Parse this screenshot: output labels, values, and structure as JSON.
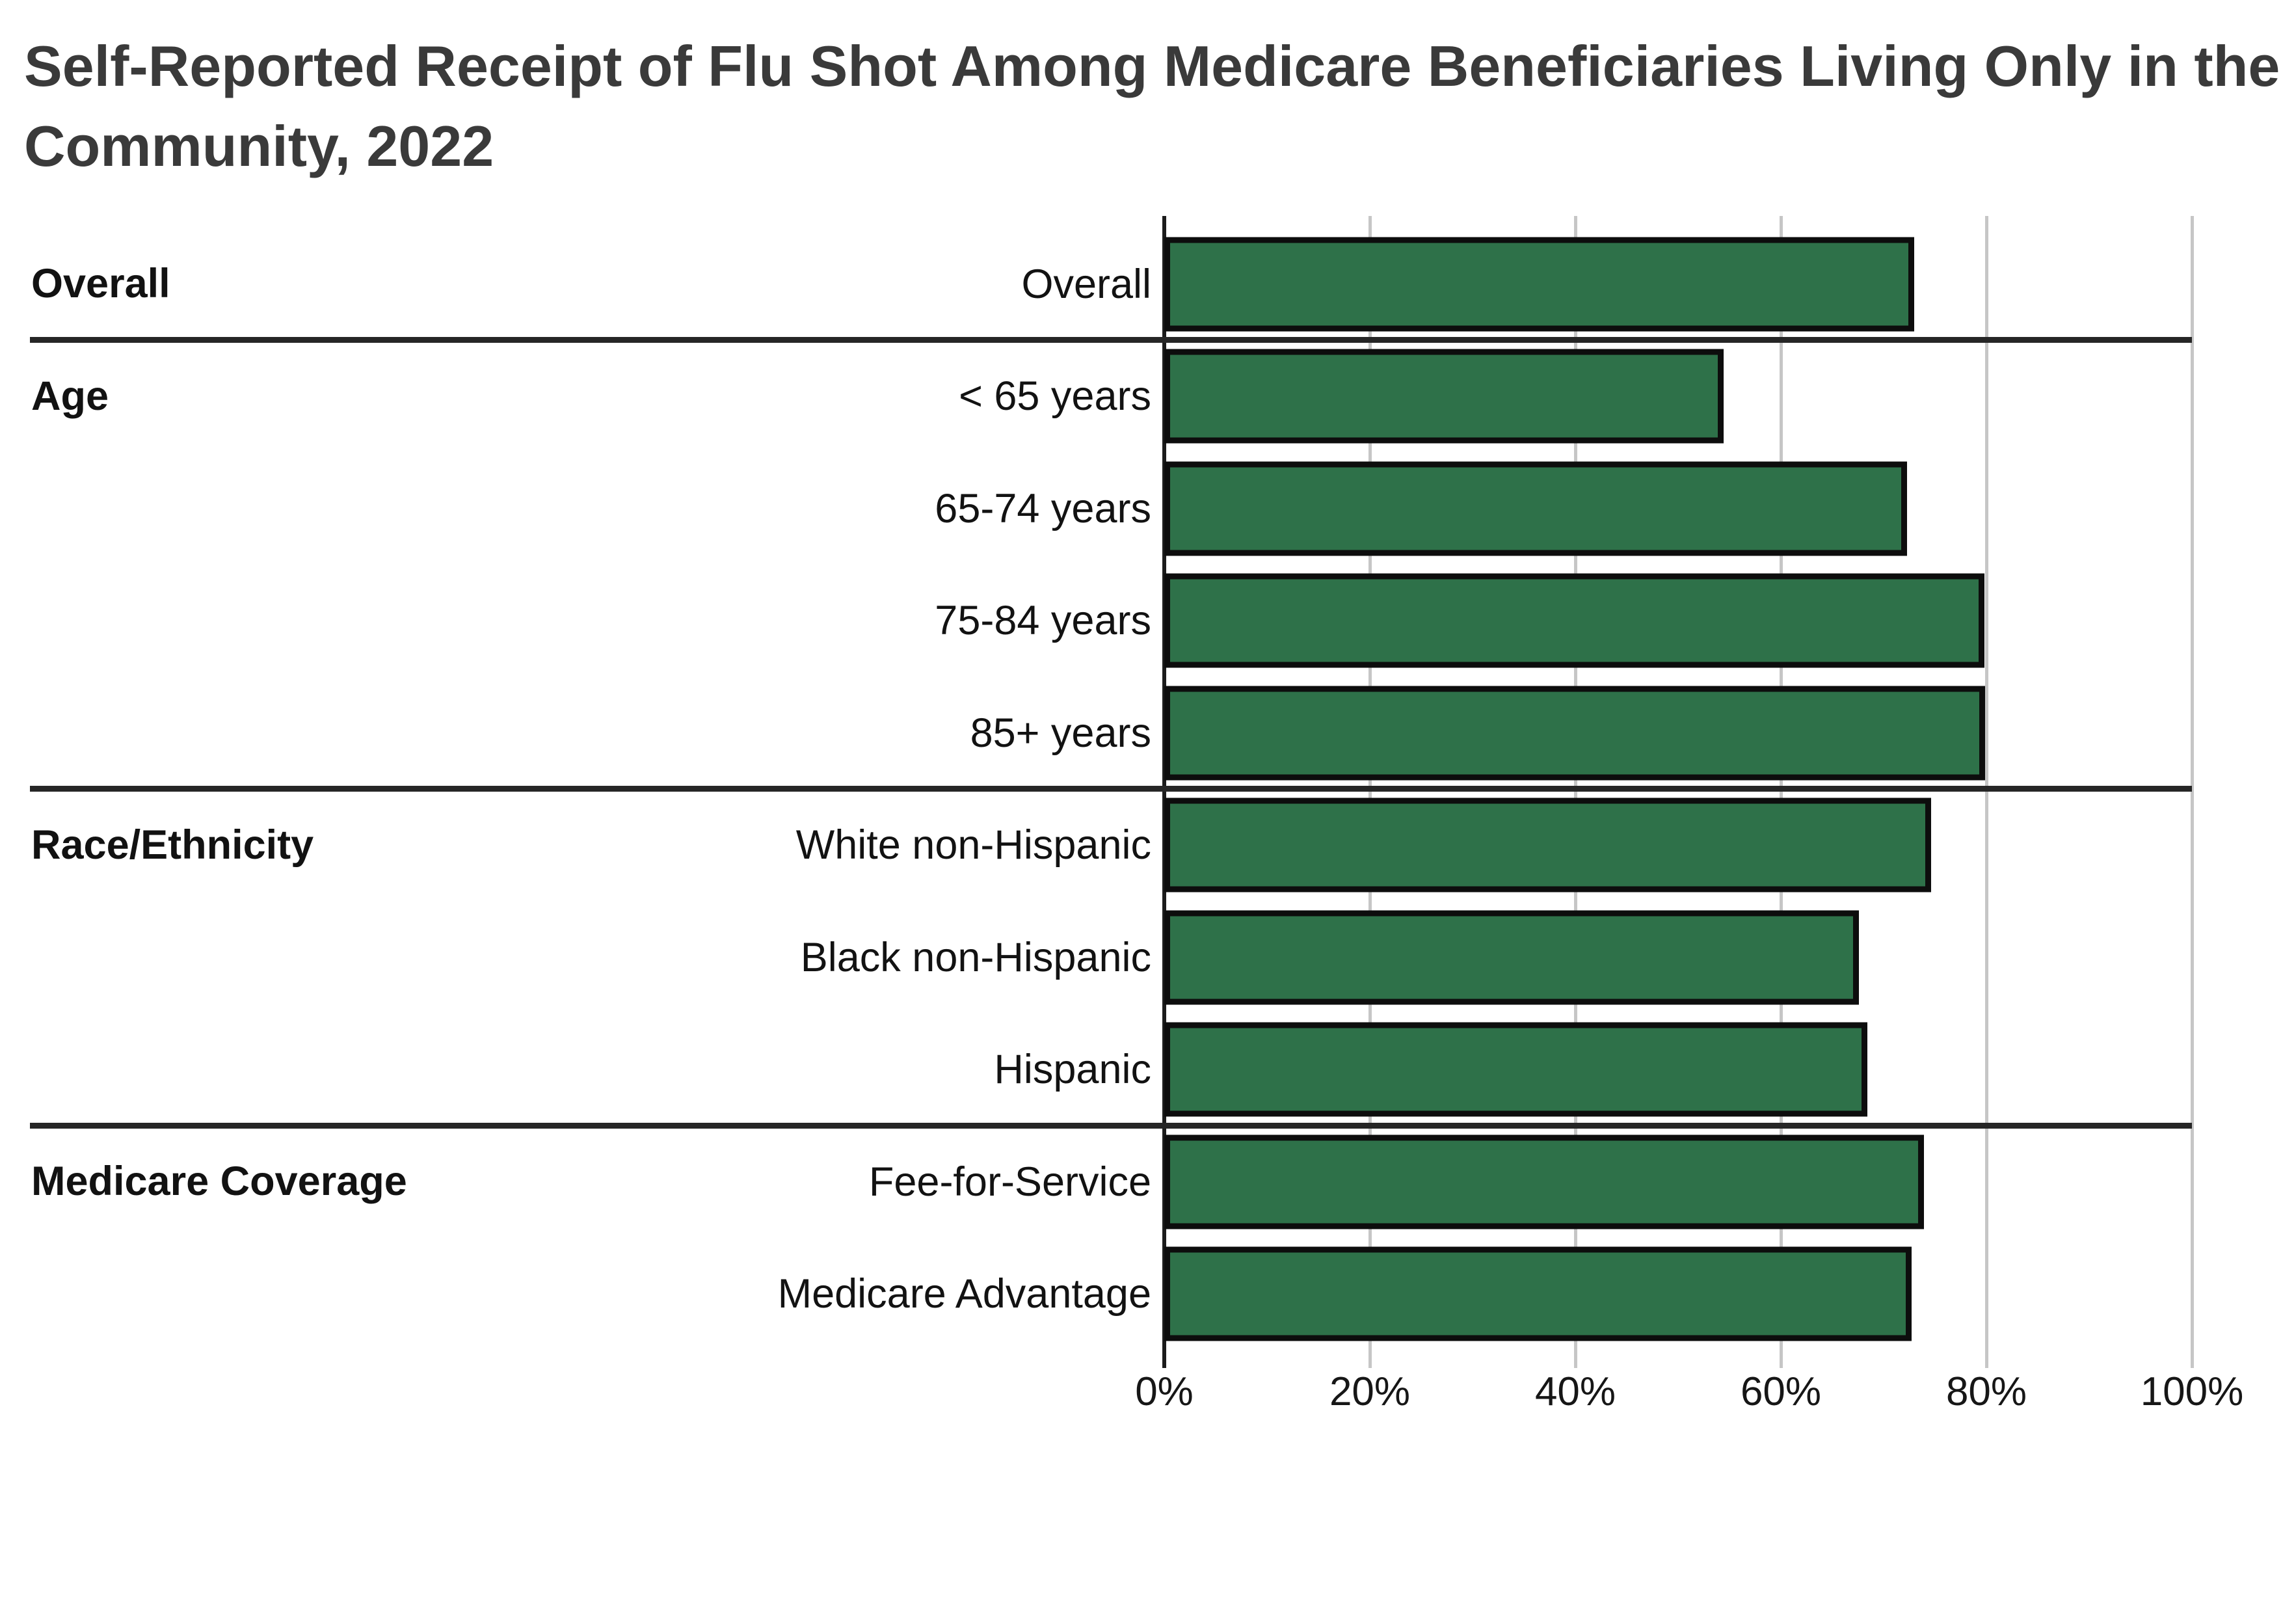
{
  "title": {
    "lines": [
      "Self-Reported Receipt of Flu Shot Among Medicare Beneficiaries Living Only in the",
      "Community, 2022"
    ]
  },
  "chart_data": {
    "type": "bar",
    "orientation": "horizontal",
    "title": "Self-Reported Receipt of Flu Shot Among Medicare Beneficiaries Living Only in the Community, 2022",
    "unit": "%",
    "xlim": [
      0,
      100
    ],
    "x_ticks": [
      "0%",
      "20%",
      "40%",
      "60%",
      "80%",
      "100%"
    ],
    "grid": true,
    "legend": "none",
    "groups": [
      {
        "label": "Overall",
        "rows": [
          {
            "label": "Overall",
            "value": 73.0
          }
        ]
      },
      {
        "label": "Age",
        "rows": [
          {
            "label": "< 65 years",
            "value": 54.4
          },
          {
            "label": "65-74 years",
            "value": 72.3
          },
          {
            "label": "75-84 years",
            "value": 79.8
          },
          {
            "label": "85+ years",
            "value": 79.9
          }
        ]
      },
      {
        "label": "Race/Ethnicity",
        "rows": [
          {
            "label": "White non-Hispanic",
            "value": 74.6
          },
          {
            "label": "Black non-Hispanic",
            "value": 67.6
          },
          {
            "label": "Hispanic",
            "value": 68.4
          }
        ]
      },
      {
        "label": "Medicare Coverage",
        "rows": [
          {
            "label": "Fee-for-Service",
            "value": 73.9
          },
          {
            "label": "Medicare Advantage",
            "value": 72.7
          }
        ]
      }
    ]
  },
  "colors": {
    "bar_fill": "#2e7149",
    "bar_border": "#0d0d0d",
    "grid": "#c6c6c6",
    "axis": "#1c1c1c",
    "separator": "#262626",
    "title_text": "#3a3a3a"
  }
}
